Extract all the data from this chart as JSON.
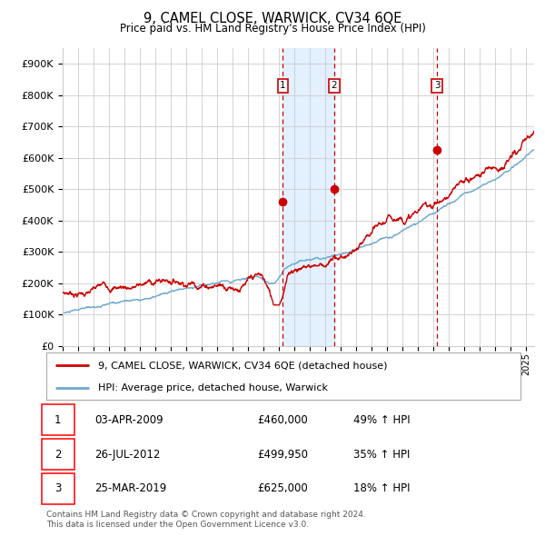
{
  "title": "9, CAMEL CLOSE, WARWICK, CV34 6QE",
  "subtitle": "Price paid vs. HM Land Registry's House Price Index (HPI)",
  "xlim_start": 1995.0,
  "xlim_end": 2025.5,
  "ylim_min": 0,
  "ylim_max": 950000,
  "yticks": [
    0,
    100000,
    200000,
    300000,
    400000,
    500000,
    600000,
    700000,
    800000,
    900000
  ],
  "ytick_labels": [
    "£0",
    "£100K",
    "£200K",
    "£300K",
    "£400K",
    "£500K",
    "£600K",
    "£700K",
    "£800K",
    "£900K"
  ],
  "sale_dates": [
    2009.25,
    2012.57,
    2019.23
  ],
  "sale_prices": [
    460000,
    499950,
    625000
  ],
  "sale_labels": [
    "1",
    "2",
    "3"
  ],
  "sale_info": [
    {
      "label": "1",
      "date": "03-APR-2009",
      "price": "£460,000",
      "hpi": "49% ↑ HPI"
    },
    {
      "label": "2",
      "date": "26-JUL-2012",
      "price": "£499,950",
      "hpi": "35% ↑ HPI"
    },
    {
      "label": "3",
      "date": "25-MAR-2019",
      "price": "£625,000",
      "hpi": "18% ↑ HPI"
    }
  ],
  "shade_x0": 2009.25,
  "shade_x1": 2012.57,
  "red_line_color": "#cc0000",
  "blue_line_color": "#6fa8d0",
  "background_color": "#ffffff",
  "grid_color": "#cccccc",
  "shade_color": "#ddeeff",
  "legend_label_red": "9, CAMEL CLOSE, WARWICK, CV34 6QE (detached house)",
  "legend_label_blue": "HPI: Average price, detached house, Warwick",
  "footnote": "Contains HM Land Registry data © Crown copyright and database right 2024.\nThis data is licensed under the Open Government Licence v3.0."
}
